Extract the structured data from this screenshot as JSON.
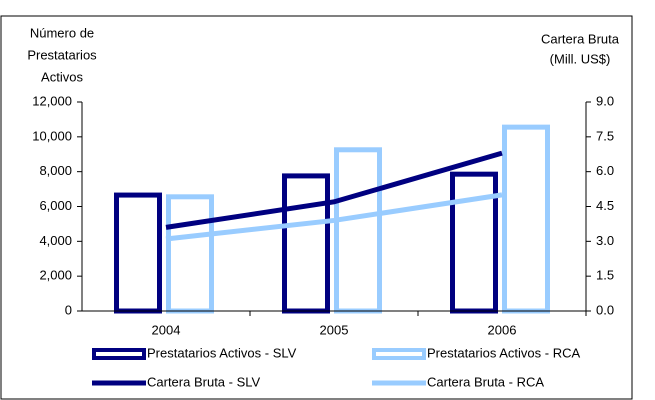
{
  "chart_data": {
    "type": "bar",
    "y_label": [
      "Número de",
      "Prestatarios",
      "Activos"
    ],
    "y2_label": [
      "Cartera Bruta",
      "(Mill. US$)"
    ],
    "categories": [
      "2004",
      "2005",
      "2006"
    ],
    "series": [
      {
        "name": "Prestatarios Activos - SLV",
        "type": "bar",
        "color": "#000080",
        "values": [
          6800,
          7900,
          8000
        ]
      },
      {
        "name": "Prestatarios Activos - RCA",
        "type": "bar",
        "color": "#99ccff",
        "values": [
          6700,
          9400,
          10700
        ]
      },
      {
        "name": "Cartera Bruta - SLV",
        "type": "line",
        "axis": "y2",
        "color": "#000080",
        "values": [
          3.6,
          4.7,
          6.8
        ]
      },
      {
        "name": "Cartera Bruta - RCA",
        "type": "line",
        "axis": "y2",
        "color": "#99ccff",
        "values": [
          3.1,
          3.9,
          5.0
        ]
      }
    ],
    "ylim": [
      0,
      12000
    ],
    "yticks": [
      0,
      {
        "value": 2000,
        "label": "2,000"
      },
      {
        "value": 4000,
        "label": "4,000"
      },
      {
        "value": 6000,
        "label": "6,000"
      },
      {
        "value": 8000,
        "label": "8,000"
      },
      {
        "value": 10000,
        "label": "10,000"
      },
      {
        "value": 12000,
        "label": "12,000"
      }
    ],
    "y2lim": [
      0,
      9
    ],
    "y2ticks": [
      {
        "value": 0,
        "label": "0.0"
      },
      1.5,
      {
        "value": 3,
        "label": "3.0"
      },
      4.5,
      {
        "value": 6,
        "label": "6.0"
      },
      7.5,
      {
        "value": 9,
        "label": "9.0"
      }
    ],
    "legend": "bottom"
  }
}
